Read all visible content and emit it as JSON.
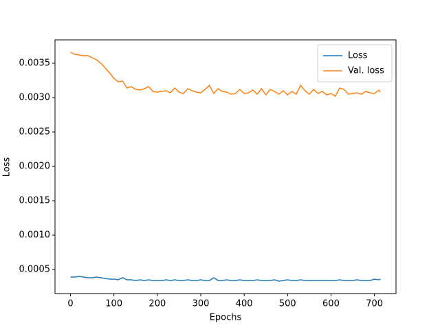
{
  "chart_data": {
    "type": "line",
    "xlabel": "Epochs",
    "ylabel": "Loss",
    "x": [
      0,
      10,
      20,
      30,
      40,
      50,
      60,
      70,
      80,
      90,
      100,
      110,
      120,
      130,
      140,
      150,
      160,
      170,
      180,
      190,
      200,
      210,
      220,
      230,
      240,
      250,
      260,
      270,
      280,
      290,
      300,
      310,
      320,
      330,
      340,
      350,
      360,
      370,
      380,
      390,
      400,
      410,
      420,
      430,
      440,
      450,
      460,
      470,
      480,
      490,
      500,
      510,
      520,
      530,
      540,
      550,
      560,
      570,
      580,
      590,
      600,
      610,
      620,
      630,
      640,
      650,
      660,
      670,
      680,
      690,
      700,
      710,
      714
    ],
    "series": [
      {
        "name": "Loss",
        "color": "#1f77b4",
        "values": [
          0.00039,
          0.00039,
          0.0004,
          0.00039,
          0.00038,
          0.00038,
          0.00039,
          0.00038,
          0.00037,
          0.00036,
          0.00036,
          0.00035,
          0.00038,
          0.00035,
          0.00035,
          0.00034,
          0.00035,
          0.00034,
          0.00035,
          0.00034,
          0.00034,
          0.00034,
          0.00035,
          0.00034,
          0.00035,
          0.00034,
          0.00034,
          0.00035,
          0.00034,
          0.00034,
          0.00035,
          0.00034,
          0.00034,
          0.00038,
          0.00034,
          0.00034,
          0.00035,
          0.00034,
          0.00034,
          0.00035,
          0.00034,
          0.00034,
          0.00034,
          0.00035,
          0.00034,
          0.00034,
          0.00034,
          0.00035,
          0.00033,
          0.00034,
          0.00035,
          0.00034,
          0.00034,
          0.00035,
          0.00034,
          0.00034,
          0.00034,
          0.00034,
          0.00034,
          0.00034,
          0.00034,
          0.00034,
          0.00035,
          0.00034,
          0.00034,
          0.00034,
          0.00035,
          0.00034,
          0.00034,
          0.00034,
          0.00036,
          0.00035,
          0.00036
        ]
      },
      {
        "name": "Val. loss",
        "color": "#ff7f0e",
        "values": [
          0.00366,
          0.00363,
          0.00362,
          0.00361,
          0.00361,
          0.00358,
          0.00355,
          0.0035,
          0.00343,
          0.00336,
          0.00328,
          0.00323,
          0.00324,
          0.00314,
          0.00316,
          0.00312,
          0.00311,
          0.00313,
          0.00316,
          0.00309,
          0.00308,
          0.00309,
          0.0031,
          0.00307,
          0.00314,
          0.00308,
          0.00306,
          0.00313,
          0.0031,
          0.00308,
          0.00307,
          0.00312,
          0.00318,
          0.00306,
          0.00313,
          0.00309,
          0.00308,
          0.00305,
          0.00306,
          0.00312,
          0.00306,
          0.00307,
          0.00311,
          0.00305,
          0.00313,
          0.00304,
          0.00312,
          0.00309,
          0.00305,
          0.0031,
          0.00304,
          0.00309,
          0.00305,
          0.00318,
          0.0031,
          0.00305,
          0.00312,
          0.00306,
          0.00309,
          0.00304,
          0.00306,
          0.00302,
          0.00314,
          0.00312,
          0.00305,
          0.00306,
          0.00307,
          0.00305,
          0.00309,
          0.00307,
          0.00306,
          0.00311,
          0.00308
        ]
      }
    ],
    "xlim": [
      -35.7,
      749.7
    ],
    "xticks": [
      0,
      100,
      200,
      300,
      400,
      500,
      600,
      700
    ],
    "ylim": [
      0.00015,
      0.00384
    ],
    "yticks": [
      0.0005,
      {
        "value": 0.001,
        "label": "0.0010"
      },
      0.0015,
      {
        "value": 0.002,
        "label": "0.0020"
      },
      0.0025,
      {
        "value": 0.003,
        "label": "0.0030"
      },
      0.0035
    ],
    "grid": false,
    "legend": "upper right"
  }
}
